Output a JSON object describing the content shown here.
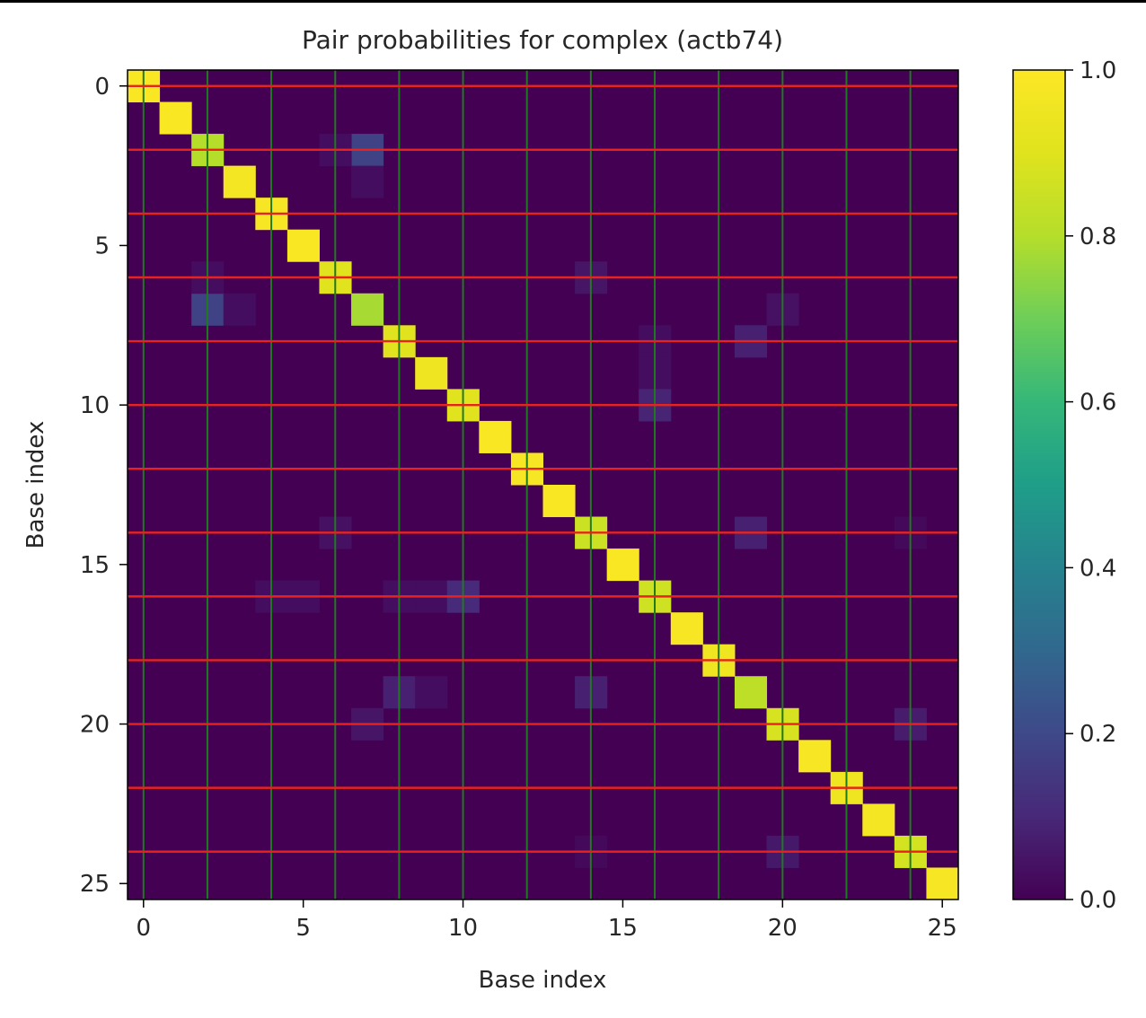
{
  "chart_data": {
    "type": "heatmap",
    "title": "Pair probabilities for complex (actb74)",
    "xlabel": "Base index",
    "ylabel": "Base index",
    "n": 26,
    "xlim": [
      -0.5,
      25.5
    ],
    "ylim": [
      25.5,
      -0.5
    ],
    "xticks": [
      0,
      5,
      10,
      15,
      20,
      25
    ],
    "yticks": [
      0,
      5,
      10,
      15,
      20,
      25
    ],
    "colormap": "viridis",
    "colorbar": {
      "ticks": [
        "0.0",
        "0.2",
        "0.4",
        "0.6",
        "0.8",
        "1.0"
      ],
      "range": [
        0,
        1
      ]
    },
    "background_value": 0.0,
    "diagonal": [
      0.99,
      0.99,
      0.8,
      0.97,
      0.98,
      0.99,
      0.9,
      0.78,
      0.9,
      0.95,
      0.9,
      0.99,
      0.98,
      0.99,
      0.85,
      0.99,
      0.86,
      0.98,
      0.95,
      0.82,
      0.88,
      0.98,
      0.95,
      0.97,
      0.87,
      0.98
    ],
    "off_diagonal": [
      {
        "row": 2,
        "col": 7,
        "value": 0.18
      },
      {
        "row": 7,
        "col": 2,
        "value": 0.18
      },
      {
        "row": 2,
        "col": 6,
        "value": 0.03
      },
      {
        "row": 3,
        "col": 7,
        "value": 0.03
      },
      {
        "row": 7,
        "col": 3,
        "value": 0.03
      },
      {
        "row": 6,
        "col": 2,
        "value": 0.03
      },
      {
        "row": 6,
        "col": 14,
        "value": 0.05
      },
      {
        "row": 7,
        "col": 20,
        "value": 0.04
      },
      {
        "row": 8,
        "col": 19,
        "value": 0.08
      },
      {
        "row": 8,
        "col": 16,
        "value": 0.03
      },
      {
        "row": 9,
        "col": 16,
        "value": 0.03
      },
      {
        "row": 10,
        "col": 16,
        "value": 0.09
      },
      {
        "row": 14,
        "col": 6,
        "value": 0.04
      },
      {
        "row": 14,
        "col": 19,
        "value": 0.08
      },
      {
        "row": 14,
        "col": 24,
        "value": 0.02
      },
      {
        "row": 16,
        "col": 4,
        "value": 0.03
      },
      {
        "row": 16,
        "col": 5,
        "value": 0.03
      },
      {
        "row": 16,
        "col": 8,
        "value": 0.03
      },
      {
        "row": 16,
        "col": 9,
        "value": 0.03
      },
      {
        "row": 16,
        "col": 10,
        "value": 0.11
      },
      {
        "row": 19,
        "col": 8,
        "value": 0.08
      },
      {
        "row": 19,
        "col": 9,
        "value": 0.03
      },
      {
        "row": 19,
        "col": 14,
        "value": 0.08
      },
      {
        "row": 20,
        "col": 7,
        "value": 0.05
      },
      {
        "row": 20,
        "col": 24,
        "value": 0.07
      },
      {
        "row": 24,
        "col": 20,
        "value": 0.06
      },
      {
        "row": 24,
        "col": 14,
        "value": 0.02
      }
    ],
    "vertical_lines": {
      "color": "#1f7a1f",
      "at": [
        0,
        2,
        4,
        6,
        8,
        10,
        12,
        14,
        16,
        18,
        20,
        22,
        24
      ]
    },
    "horizontal_lines": {
      "color": "#e8221c",
      "at": [
        0,
        2,
        4,
        6,
        8,
        10,
        12,
        14,
        16,
        18,
        20,
        22,
        24
      ]
    }
  }
}
